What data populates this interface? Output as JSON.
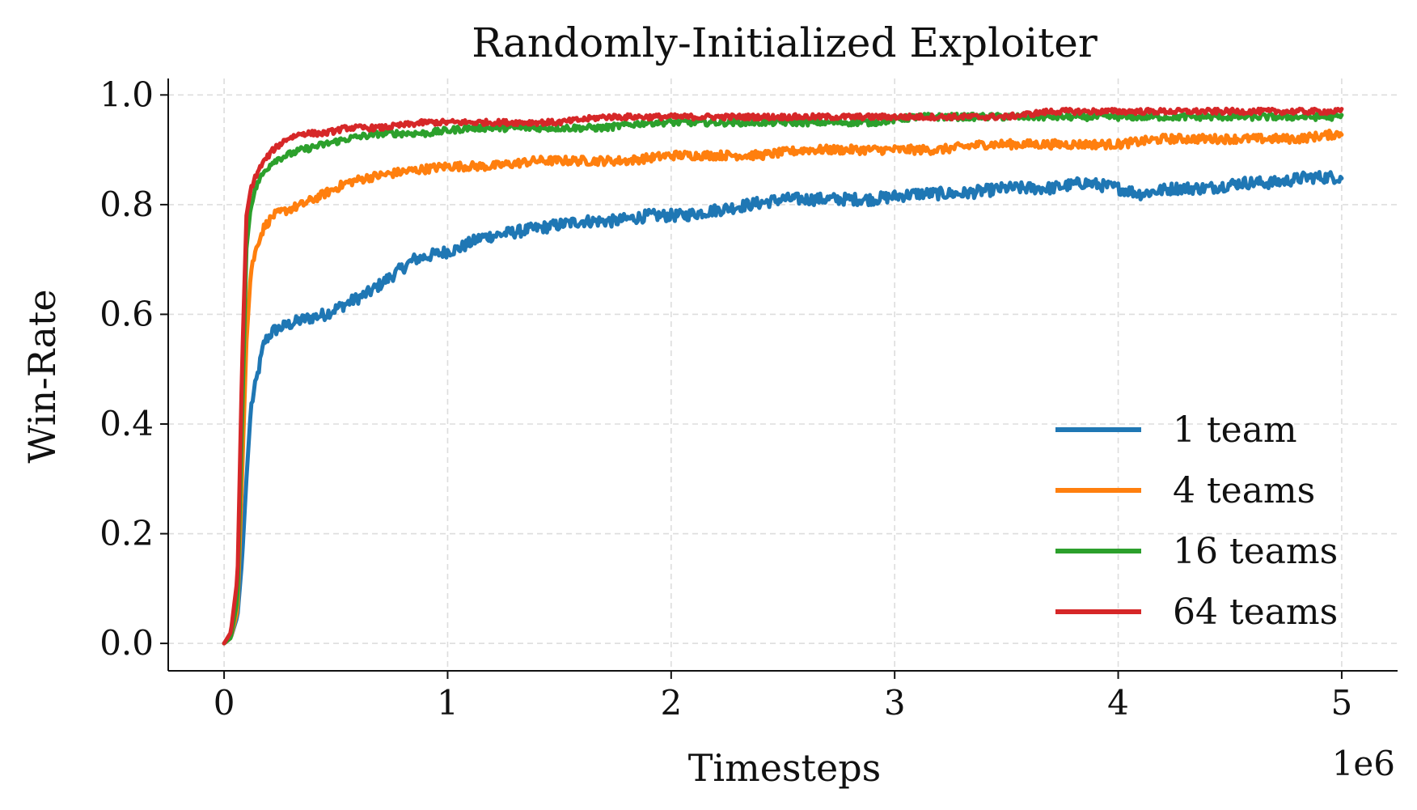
{
  "chart_data": {
    "type": "line",
    "title": "Randomly-Initialized Exploiter",
    "xlabel": "Timesteps",
    "ylabel": "Win-Rate",
    "x_scale_label": "1e6",
    "xlim": [
      -0.25,
      5.25
    ],
    "ylim": [
      -0.05,
      1.03
    ],
    "x_ticks": [
      0,
      1,
      2,
      3,
      4,
      5
    ],
    "x_tick_labels": [
      "0",
      "1",
      "2",
      "3",
      "4",
      "5"
    ],
    "y_ticks": [
      0.0,
      0.2,
      0.4,
      0.6,
      0.8,
      1.0
    ],
    "y_tick_labels": [
      "0.0",
      "0.2",
      "0.4",
      "0.6",
      "0.8",
      "1.0"
    ],
    "grid": true,
    "legend_position": "lower-right",
    "series": [
      {
        "name": "1 team",
        "color": "#1f77b4",
        "x": [
          0,
          0.03,
          0.06,
          0.08,
          0.1,
          0.12,
          0.15,
          0.18,
          0.22,
          0.28,
          0.35,
          0.45,
          0.55,
          0.65,
          0.75,
          0.85,
          0.95,
          1.05,
          1.15,
          1.3,
          1.45,
          1.6,
          1.75,
          1.9,
          2.05,
          2.2,
          2.35,
          2.5,
          2.7,
          2.9,
          3.1,
          3.3,
          3.5,
          3.7,
          3.85,
          4.0,
          4.1,
          4.25,
          4.4,
          4.55,
          4.7,
          4.85,
          5.0
        ],
        "y": [
          0.0,
          0.01,
          0.05,
          0.15,
          0.3,
          0.43,
          0.49,
          0.55,
          0.57,
          0.58,
          0.59,
          0.6,
          0.62,
          0.64,
          0.67,
          0.7,
          0.71,
          0.72,
          0.74,
          0.75,
          0.76,
          0.77,
          0.77,
          0.78,
          0.78,
          0.79,
          0.8,
          0.81,
          0.81,
          0.81,
          0.82,
          0.82,
          0.83,
          0.83,
          0.84,
          0.83,
          0.82,
          0.83,
          0.83,
          0.84,
          0.84,
          0.85,
          0.85
        ]
      },
      {
        "name": "4 teams",
        "color": "#ff7f0e",
        "x": [
          0,
          0.03,
          0.06,
          0.08,
          0.1,
          0.12,
          0.15,
          0.18,
          0.22,
          0.28,
          0.35,
          0.45,
          0.55,
          0.65,
          0.8,
          1.0,
          1.2,
          1.4,
          1.6,
          1.8,
          2.0,
          2.2,
          2.4,
          2.6,
          2.8,
          3.0,
          3.2,
          3.4,
          3.6,
          3.8,
          4.0,
          4.2,
          4.4,
          4.6,
          4.8,
          5.0
        ],
        "y": [
          0.0,
          0.01,
          0.06,
          0.3,
          0.55,
          0.68,
          0.73,
          0.76,
          0.78,
          0.79,
          0.8,
          0.82,
          0.84,
          0.85,
          0.86,
          0.87,
          0.87,
          0.88,
          0.88,
          0.88,
          0.89,
          0.89,
          0.89,
          0.9,
          0.9,
          0.9,
          0.9,
          0.91,
          0.91,
          0.91,
          0.91,
          0.92,
          0.92,
          0.92,
          0.92,
          0.93
        ]
      },
      {
        "name": "16 teams",
        "color": "#2ca02c",
        "x": [
          0,
          0.03,
          0.06,
          0.08,
          0.1,
          0.12,
          0.15,
          0.18,
          0.22,
          0.28,
          0.35,
          0.45,
          0.55,
          0.7,
          0.9,
          1.1,
          1.3,
          1.5,
          1.7,
          1.9,
          2.1,
          2.3,
          2.5,
          2.7,
          2.9,
          3.1,
          3.3,
          3.5,
          3.7,
          3.9,
          4.1,
          4.3,
          4.5,
          4.7,
          4.9,
          5.0
        ],
        "y": [
          0.0,
          0.01,
          0.08,
          0.4,
          0.72,
          0.8,
          0.84,
          0.86,
          0.88,
          0.89,
          0.9,
          0.91,
          0.92,
          0.93,
          0.93,
          0.94,
          0.94,
          0.94,
          0.94,
          0.95,
          0.95,
          0.95,
          0.95,
          0.95,
          0.95,
          0.96,
          0.96,
          0.96,
          0.96,
          0.96,
          0.96,
          0.96,
          0.96,
          0.96,
          0.96,
          0.96
        ]
      },
      {
        "name": "64 teams",
        "color": "#d62728",
        "x": [
          0,
          0.03,
          0.06,
          0.08,
          0.1,
          0.12,
          0.15,
          0.18,
          0.22,
          0.28,
          0.35,
          0.45,
          0.55,
          0.7,
          0.9,
          1.1,
          1.3,
          1.5,
          1.7,
          1.9,
          2.1,
          2.3,
          2.5,
          2.7,
          2.9,
          3.1,
          3.3,
          3.5,
          3.7,
          3.9,
          4.1,
          4.3,
          4.5,
          4.7,
          4.9,
          5.0
        ],
        "y": [
          0.0,
          0.02,
          0.12,
          0.5,
          0.78,
          0.83,
          0.86,
          0.88,
          0.9,
          0.92,
          0.93,
          0.93,
          0.94,
          0.94,
          0.95,
          0.95,
          0.95,
          0.95,
          0.96,
          0.96,
          0.96,
          0.96,
          0.96,
          0.96,
          0.96,
          0.96,
          0.96,
          0.96,
          0.97,
          0.97,
          0.97,
          0.97,
          0.97,
          0.97,
          0.97,
          0.97
        ]
      }
    ]
  }
}
